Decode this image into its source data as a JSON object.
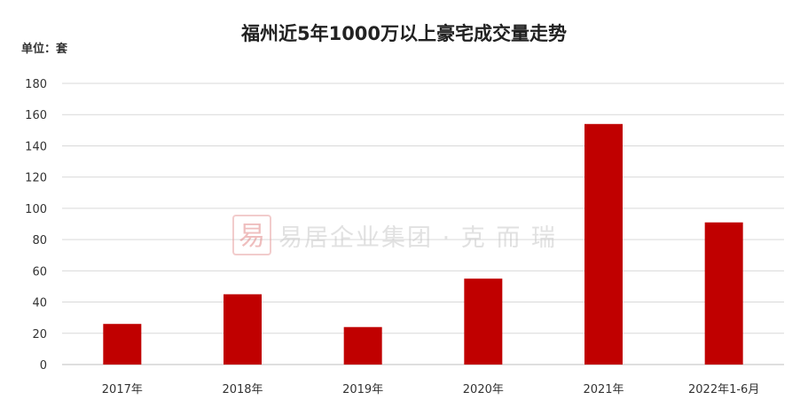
{
  "chart_data": {
    "type": "bar",
    "title": "福州近5年1000万以上豪宅成交量走势",
    "unit_label": "单位：套",
    "categories": [
      "2017年",
      "2018年",
      "2019年",
      "2020年",
      "2021年",
      "2022年1-6月"
    ],
    "values": [
      26,
      45,
      24,
      55,
      154,
      91
    ],
    "ylim": [
      0,
      180
    ],
    "yticks": [
      0,
      20,
      40,
      60,
      80,
      100,
      120,
      140,
      160,
      180
    ],
    "grid": true,
    "bar_color": "#c00000",
    "grid_color": "#d9d9d9"
  },
  "watermark": {
    "seal_text": "易",
    "text": "易居企业集团 · 克 而 瑞"
  }
}
